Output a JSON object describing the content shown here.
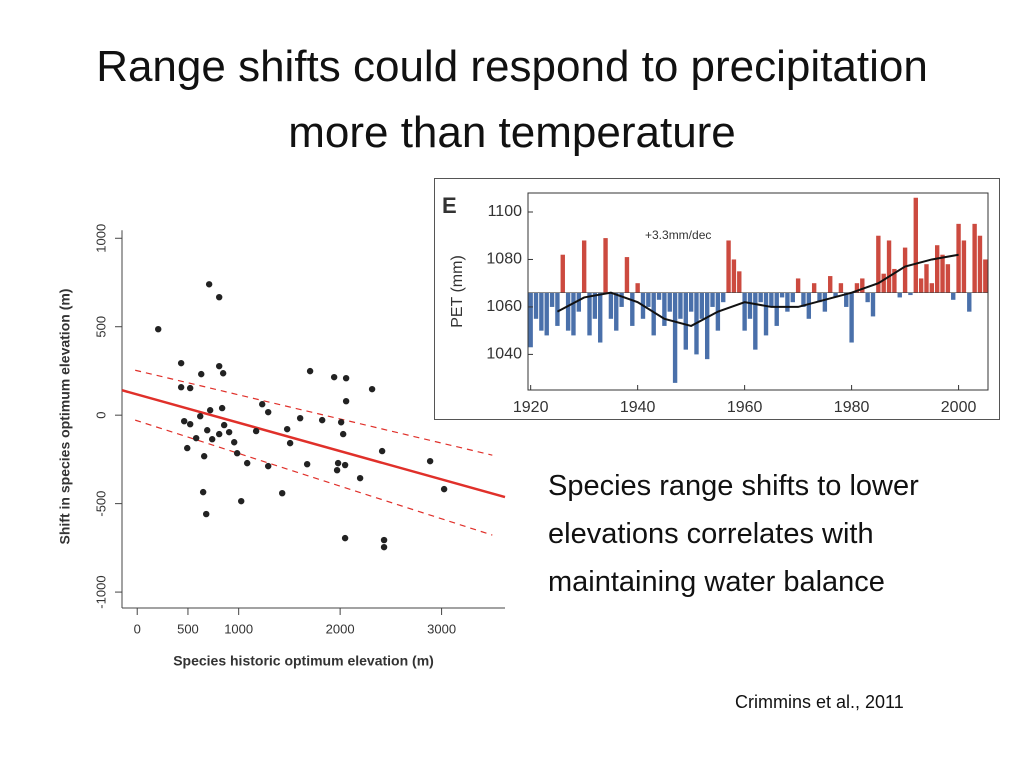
{
  "title": "Range shifts could respond to precipitation more than temperature",
  "body_text": "Species range shifts to lower elevations correlates with maintaining water balance",
  "citation": "Crimmins et al., 2011",
  "chart_data": [
    {
      "type": "scatter",
      "x_label": "Species historic optimum elevation (m)",
      "y_label": "Shift in species optimum elevation (m)",
      "xlim": [
        -150,
        3625
      ],
      "ylim": [
        -1090,
        1075
      ],
      "xticks": [
        0,
        500,
        1000,
        2000,
        3000
      ],
      "yticks": [
        -1000,
        -500,
        0,
        500,
        1000
      ],
      "color": "#222222",
      "line_color": "#e0302a",
      "x": [
        207,
        709,
        808,
        433,
        433,
        522,
        631,
        808,
        847,
        463,
        522,
        493,
        581,
        621,
        660,
        690,
        719,
        739,
        808,
        837,
        857,
        906,
        956,
        985,
        1025,
        1084,
        650,
        680,
        1172,
        1232,
        1291,
        1291,
        1429,
        1478,
        1507,
        1606,
        1675,
        1704,
        1823,
        1941,
        1980,
        2010,
        2030,
        2059,
        2059,
        1970,
        2049,
        2197,
        2315,
        2414,
        2433,
        2433,
        2887,
        3025,
        2049
      ],
      "values": [
        486,
        740,
        667,
        294,
        158,
        153,
        232,
        277,
        237,
        -34,
        -51,
        -186,
        -130,
        -6,
        -232,
        -85,
        28,
        -136,
        -107,
        40,
        -56,
        -96,
        -153,
        -215,
        -486,
        -271,
        -435,
        -559,
        -90,
        62,
        17,
        -288,
        -441,
        -79,
        -158,
        -17,
        -277,
        249,
        -28,
        215,
        -271,
        -40,
        -107,
        209,
        79,
        -311,
        -695,
        -356,
        147,
        -203,
        -706,
        -746,
        -260,
        -418,
        -282
      ],
      "fit": {
        "x": [
          -150,
          3625
        ],
        "y": [
          141,
          -463
        ]
      },
      "ci_upper": {
        "x": [
          -20,
          3500
        ],
        "y": [
          254,
          -226
        ]
      },
      "ci_lower": {
        "x": [
          -20,
          3500
        ],
        "y": [
          -28,
          -678
        ]
      }
    },
    {
      "type": "bar",
      "panel": "E",
      "y_label": "PET (mm)",
      "annotation": "+3.3mm/dec",
      "xlim": [
        1919.5,
        2005.5
      ],
      "ylim": [
        1025,
        1108
      ],
      "xticks": [
        1920,
        1940,
        1960,
        1980,
        2000
      ],
      "yticks": [
        1040,
        1060,
        1080,
        1100
      ],
      "baseline": 1066,
      "colors": {
        "above": "#cc4a3f",
        "below": "#4a70aa"
      },
      "line_color": "#111111",
      "x": [
        1920,
        1921,
        1922,
        1923,
        1924,
        1925,
        1926,
        1927,
        1928,
        1929,
        1930,
        1931,
        1932,
        1933,
        1934,
        1935,
        1936,
        1937,
        1938,
        1939,
        1940,
        1941,
        1942,
        1943,
        1944,
        1945,
        1946,
        1947,
        1948,
        1949,
        1950,
        1951,
        1952,
        1953,
        1954,
        1955,
        1956,
        1957,
        1958,
        1959,
        1960,
        1961,
        1962,
        1963,
        1964,
        1965,
        1966,
        1967,
        1968,
        1969,
        1970,
        1971,
        1972,
        1973,
        1974,
        1975,
        1976,
        1977,
        1978,
        1979,
        1980,
        1981,
        1982,
        1983,
        1984,
        1985,
        1986,
        1987,
        1988,
        1989,
        1990,
        1991,
        1992,
        1993,
        1994,
        1995,
        1996,
        1997,
        1998,
        1999,
        2000,
        2001,
        2002,
        2003,
        2004,
        2005
      ],
      "values": [
        1043,
        1055,
        1050,
        1048,
        1060,
        1052,
        1082,
        1050,
        1048,
        1058,
        1088,
        1048,
        1055,
        1045,
        1089,
        1055,
        1050,
        1060,
        1081,
        1052,
        1070,
        1055,
        1060,
        1048,
        1063,
        1052,
        1058,
        1028,
        1055,
        1042,
        1058,
        1040,
        1055,
        1038,
        1060,
        1050,
        1062,
        1088,
        1080,
        1075,
        1050,
        1055,
        1042,
        1062,
        1048,
        1060,
        1052,
        1064,
        1058,
        1062,
        1072,
        1060,
        1055,
        1070,
        1062,
        1058,
        1073,
        1064,
        1070,
        1060,
        1045,
        1070,
        1072,
        1062,
        1056,
        1090,
        1074,
        1088,
        1076,
        1064,
        1085,
        1065,
        1106,
        1072,
        1078,
        1070,
        1086,
        1082,
        1078,
        1063,
        1095,
        1088,
        1058,
        1095,
        1090,
        1080
      ],
      "smooth": {
        "x": [
          1925,
          1930,
          1935,
          1940,
          1945,
          1950,
          1955,
          1960,
          1965,
          1970,
          1975,
          1980,
          1985,
          1990,
          1995,
          2000
        ],
        "values": [
          1058,
          1064,
          1066,
          1062,
          1055,
          1052,
          1058,
          1062,
          1060,
          1060,
          1063,
          1066,
          1070,
          1077,
          1080,
          1082
        ]
      }
    }
  ]
}
